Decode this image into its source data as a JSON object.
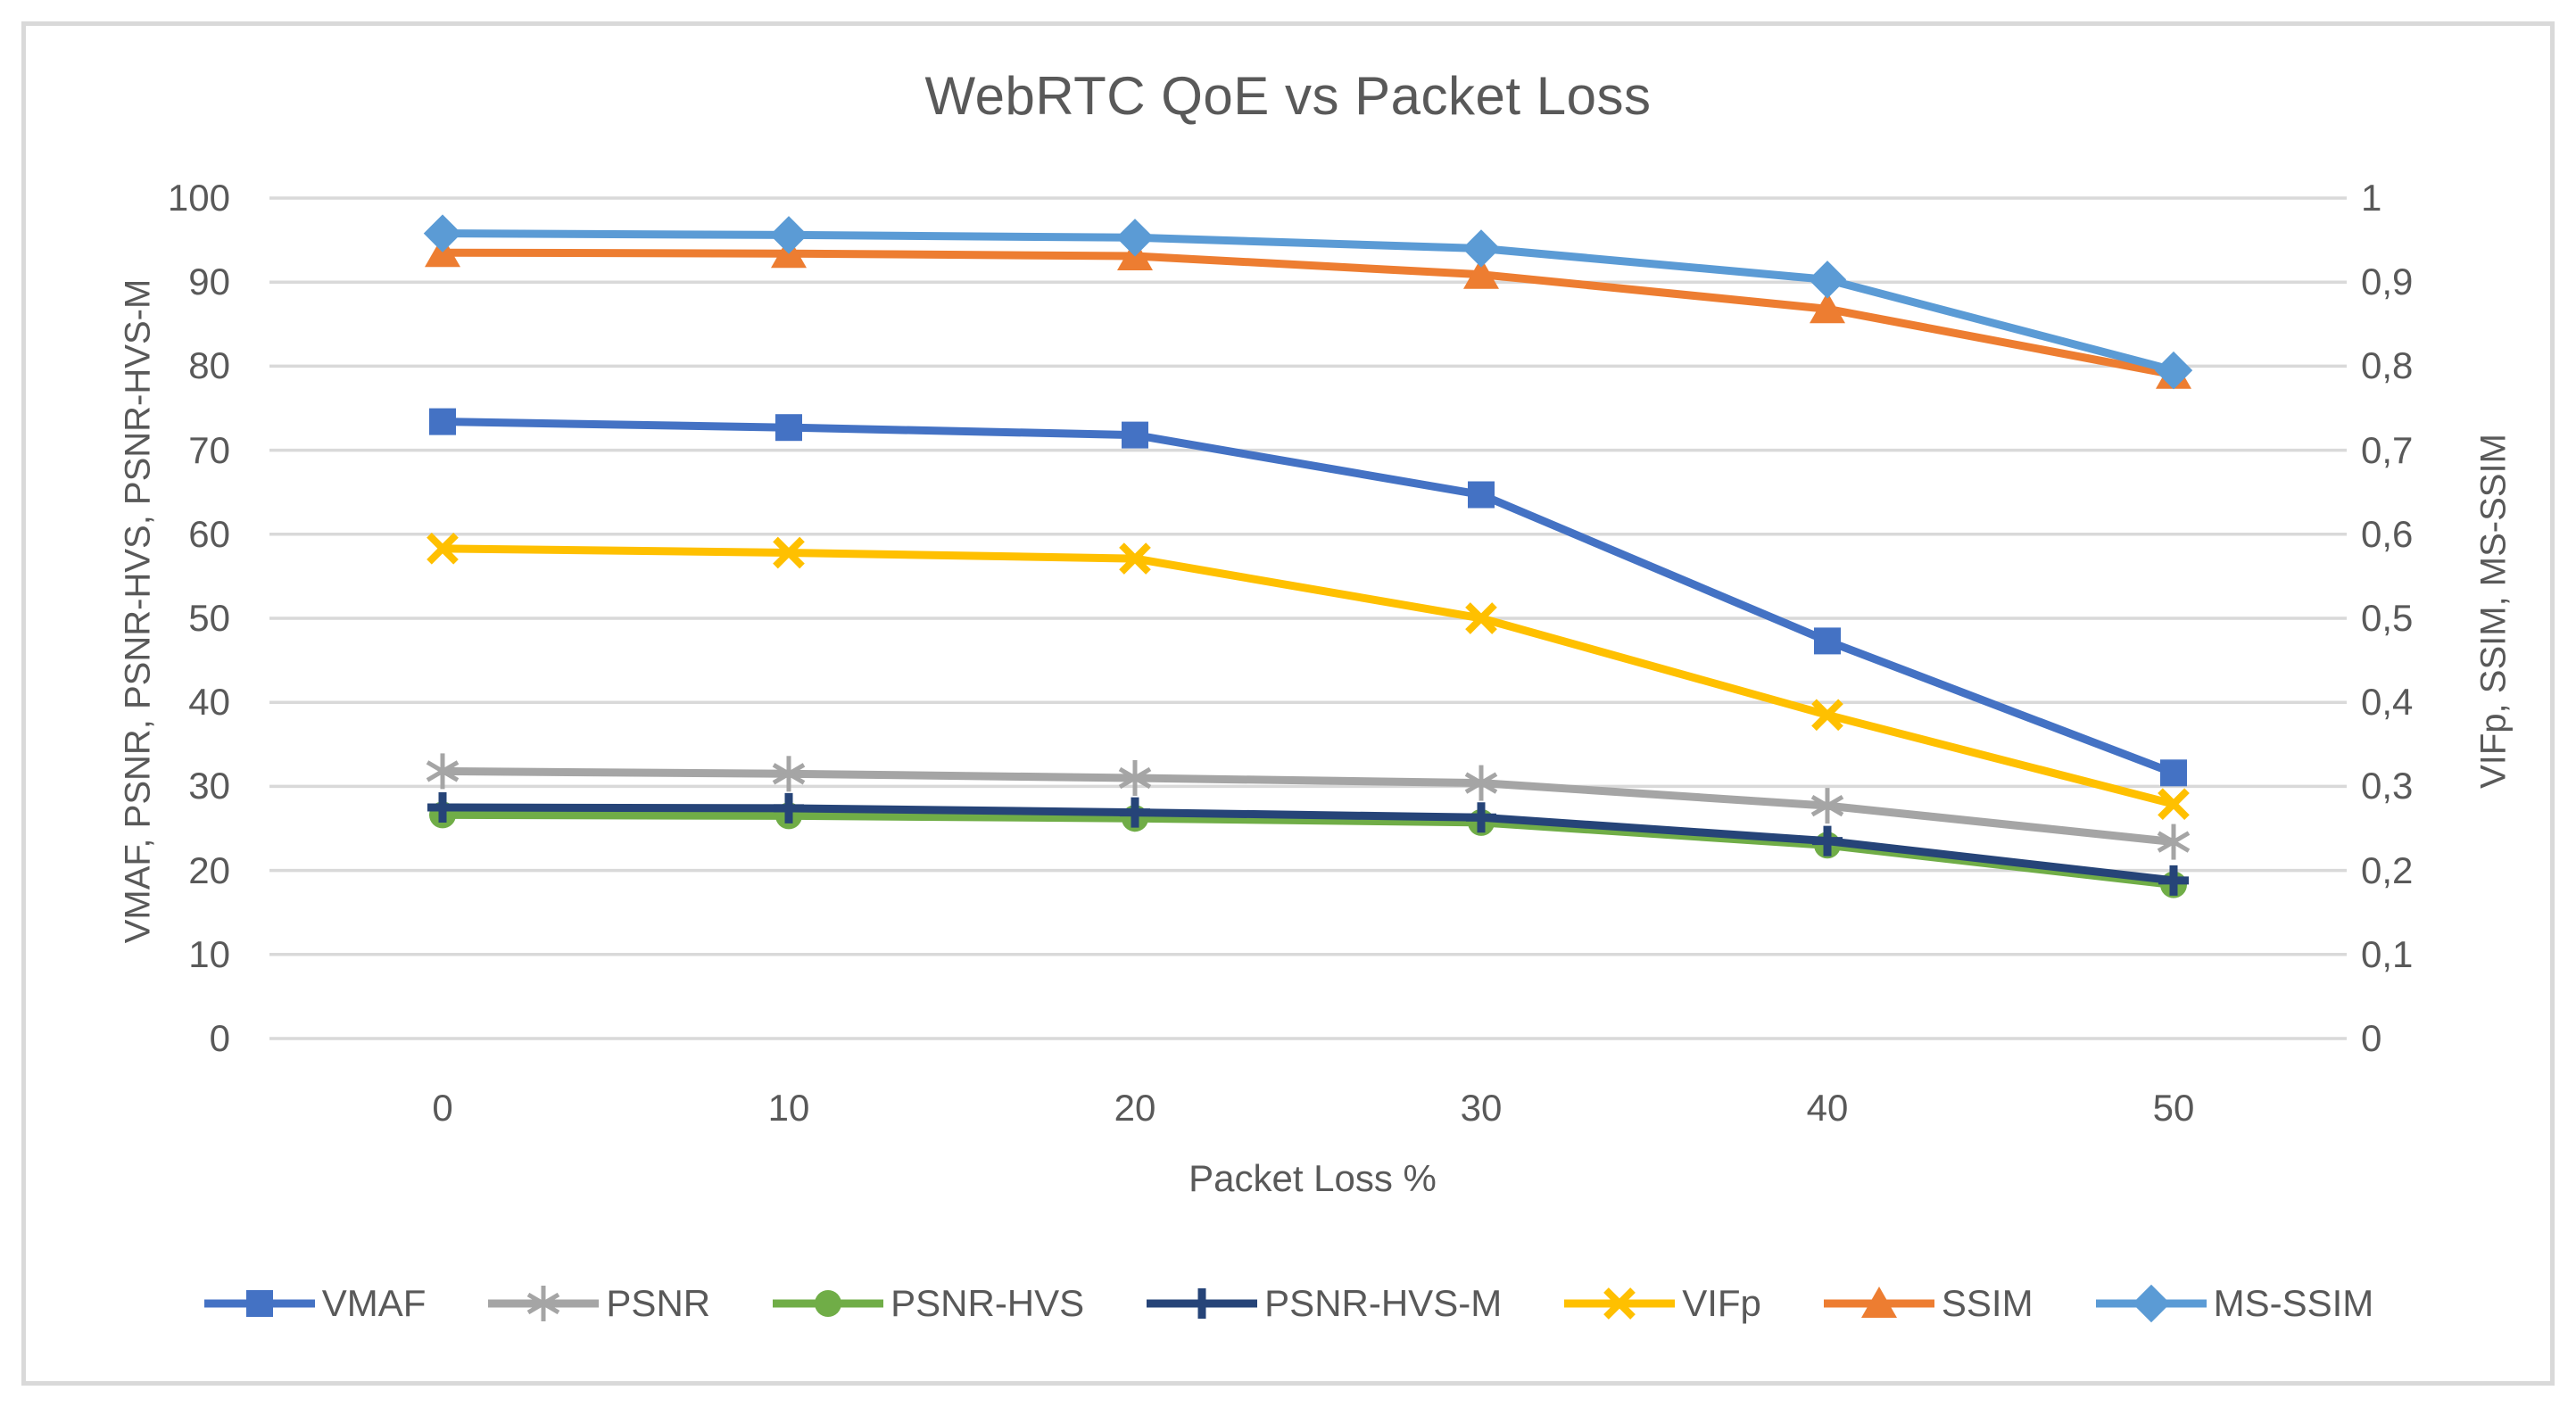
{
  "chart_data": {
    "type": "line",
    "title": "WebRTC QoE vs Packet Loss",
    "xlabel": "Packet Loss %",
    "ylabel_left": "VMAF, PSNR, PSNR-HVS, PSNR-HVS-M",
    "ylabel_right": "VIFp, SSIM, MS-SSIM",
    "x": [
      0,
      10,
      20,
      30,
      40,
      50
    ],
    "x_tick_labels": [
      "0",
      "10",
      "20",
      "30",
      "40",
      "50"
    ],
    "left_axis": {
      "min": 0,
      "max": 100,
      "ticks": [
        "100",
        "90",
        "80",
        "70",
        "60",
        "50",
        "40",
        "30",
        "20",
        "10",
        "0"
      ]
    },
    "right_axis": {
      "min": 0,
      "max": 1,
      "ticks": [
        "1",
        "0,9",
        "0,8",
        "0,7",
        "0,6",
        "0,5",
        "0,4",
        "0,3",
        "0,2",
        "0,1",
        "0"
      ]
    },
    "grid": "horizontal-only",
    "legend_position": "bottom",
    "series": [
      {
        "name": "VMAF",
        "axis": "left",
        "color": "#4472C4",
        "marker": "square",
        "values": [
          73.4,
          72.7,
          71.8,
          64.7,
          47.3,
          31.6
        ]
      },
      {
        "name": "PSNR",
        "axis": "left",
        "color": "#A5A5A5",
        "marker": "asterisk",
        "values": [
          31.8,
          31.5,
          31.0,
          30.4,
          27.7,
          23.4
        ]
      },
      {
        "name": "PSNR-HVS",
        "axis": "left",
        "color": "#70AD47",
        "marker": "circle",
        "values": [
          26.6,
          26.5,
          26.2,
          25.7,
          23.0,
          18.3
        ]
      },
      {
        "name": "PSNR-HVS-M",
        "axis": "left",
        "color": "#264478",
        "marker": "plus",
        "values": [
          27.5,
          27.4,
          26.9,
          26.3,
          23.5,
          18.8
        ]
      },
      {
        "name": "VIFp",
        "axis": "right",
        "color": "#FFC000",
        "marker": "x",
        "values": [
          0.583,
          0.578,
          0.571,
          0.5,
          0.385,
          0.279
        ]
      },
      {
        "name": "SSIM",
        "axis": "right",
        "color": "#ED7D31",
        "marker": "triangle",
        "values": [
          0.935,
          0.934,
          0.931,
          0.909,
          0.868,
          0.79
        ]
      },
      {
        "name": "MS-SSIM",
        "axis": "right",
        "color": "#5B9BD5",
        "marker": "diamond",
        "values": [
          0.958,
          0.956,
          0.953,
          0.94,
          0.903,
          0.795
        ]
      }
    ],
    "colors": {
      "background": "#FFFFFF",
      "gridline": "#D9D9D9",
      "frame_border": "#D9D9D9",
      "text": "#595959"
    }
  }
}
